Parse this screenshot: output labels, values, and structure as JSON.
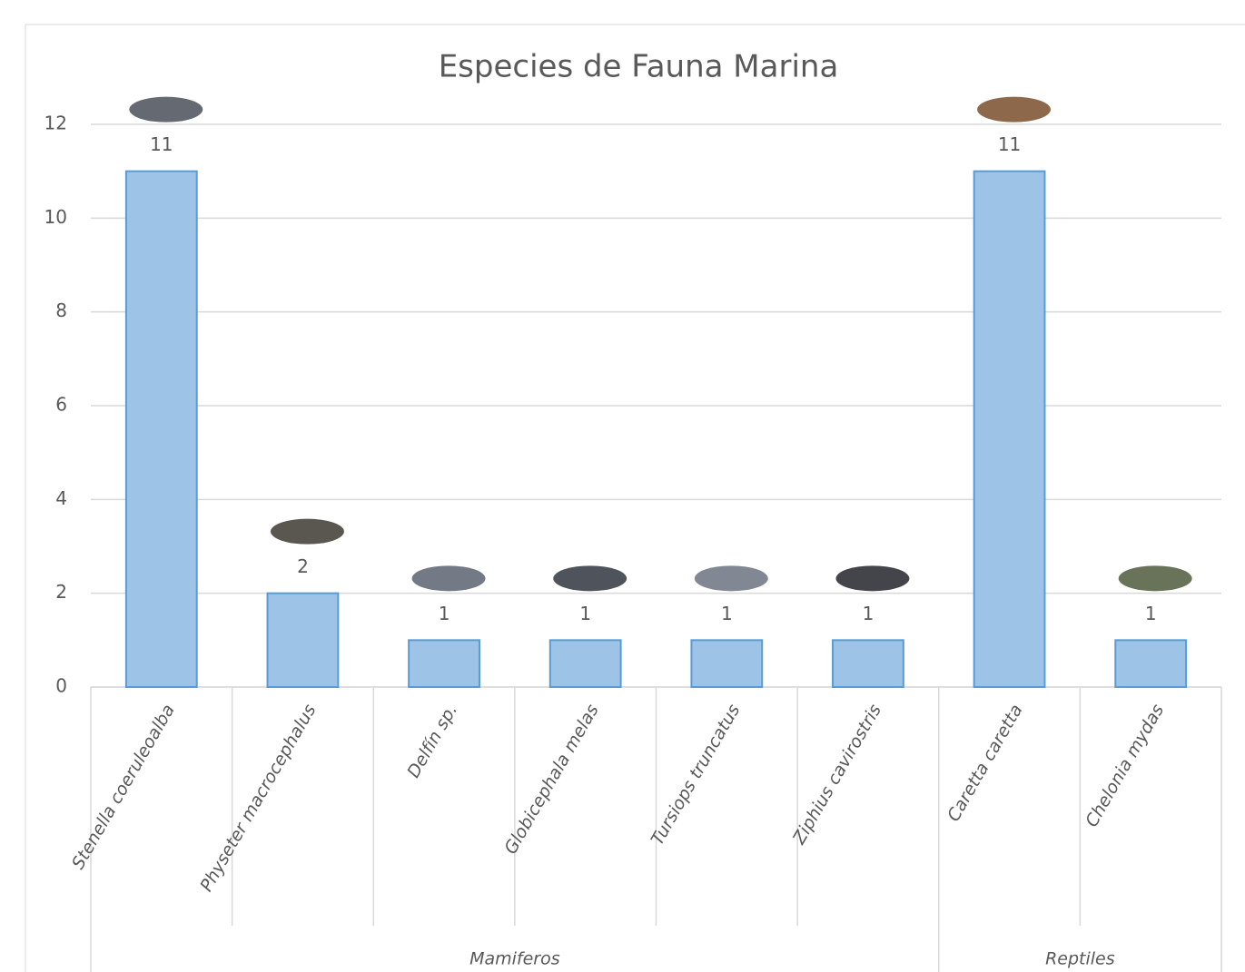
{
  "chart_data": {
    "type": "bar",
    "title": "Especies de Fauna Marina",
    "categories": [
      "Stenella coeruleoalba",
      "Physeter macrocephalus",
      "Delfín sp.",
      "Globicephala melas",
      "Tursiops truncatus",
      "Ziphius cavirostris",
      "Caretta caretta",
      "Chelonia mydas"
    ],
    "groups": [
      {
        "label": "Mamiferos",
        "span": 6
      },
      {
        "label": "Reptiles",
        "span": 2
      }
    ],
    "values": [
      11,
      2,
      1,
      1,
      1,
      1,
      11,
      1
    ],
    "color": "#9dc3e6",
    "edge_color": "#5b9bd5",
    "ylim": [
      0,
      12
    ],
    "yticks": [
      0,
      2,
      4,
      6,
      8,
      10,
      12
    ],
    "grid": true
  }
}
